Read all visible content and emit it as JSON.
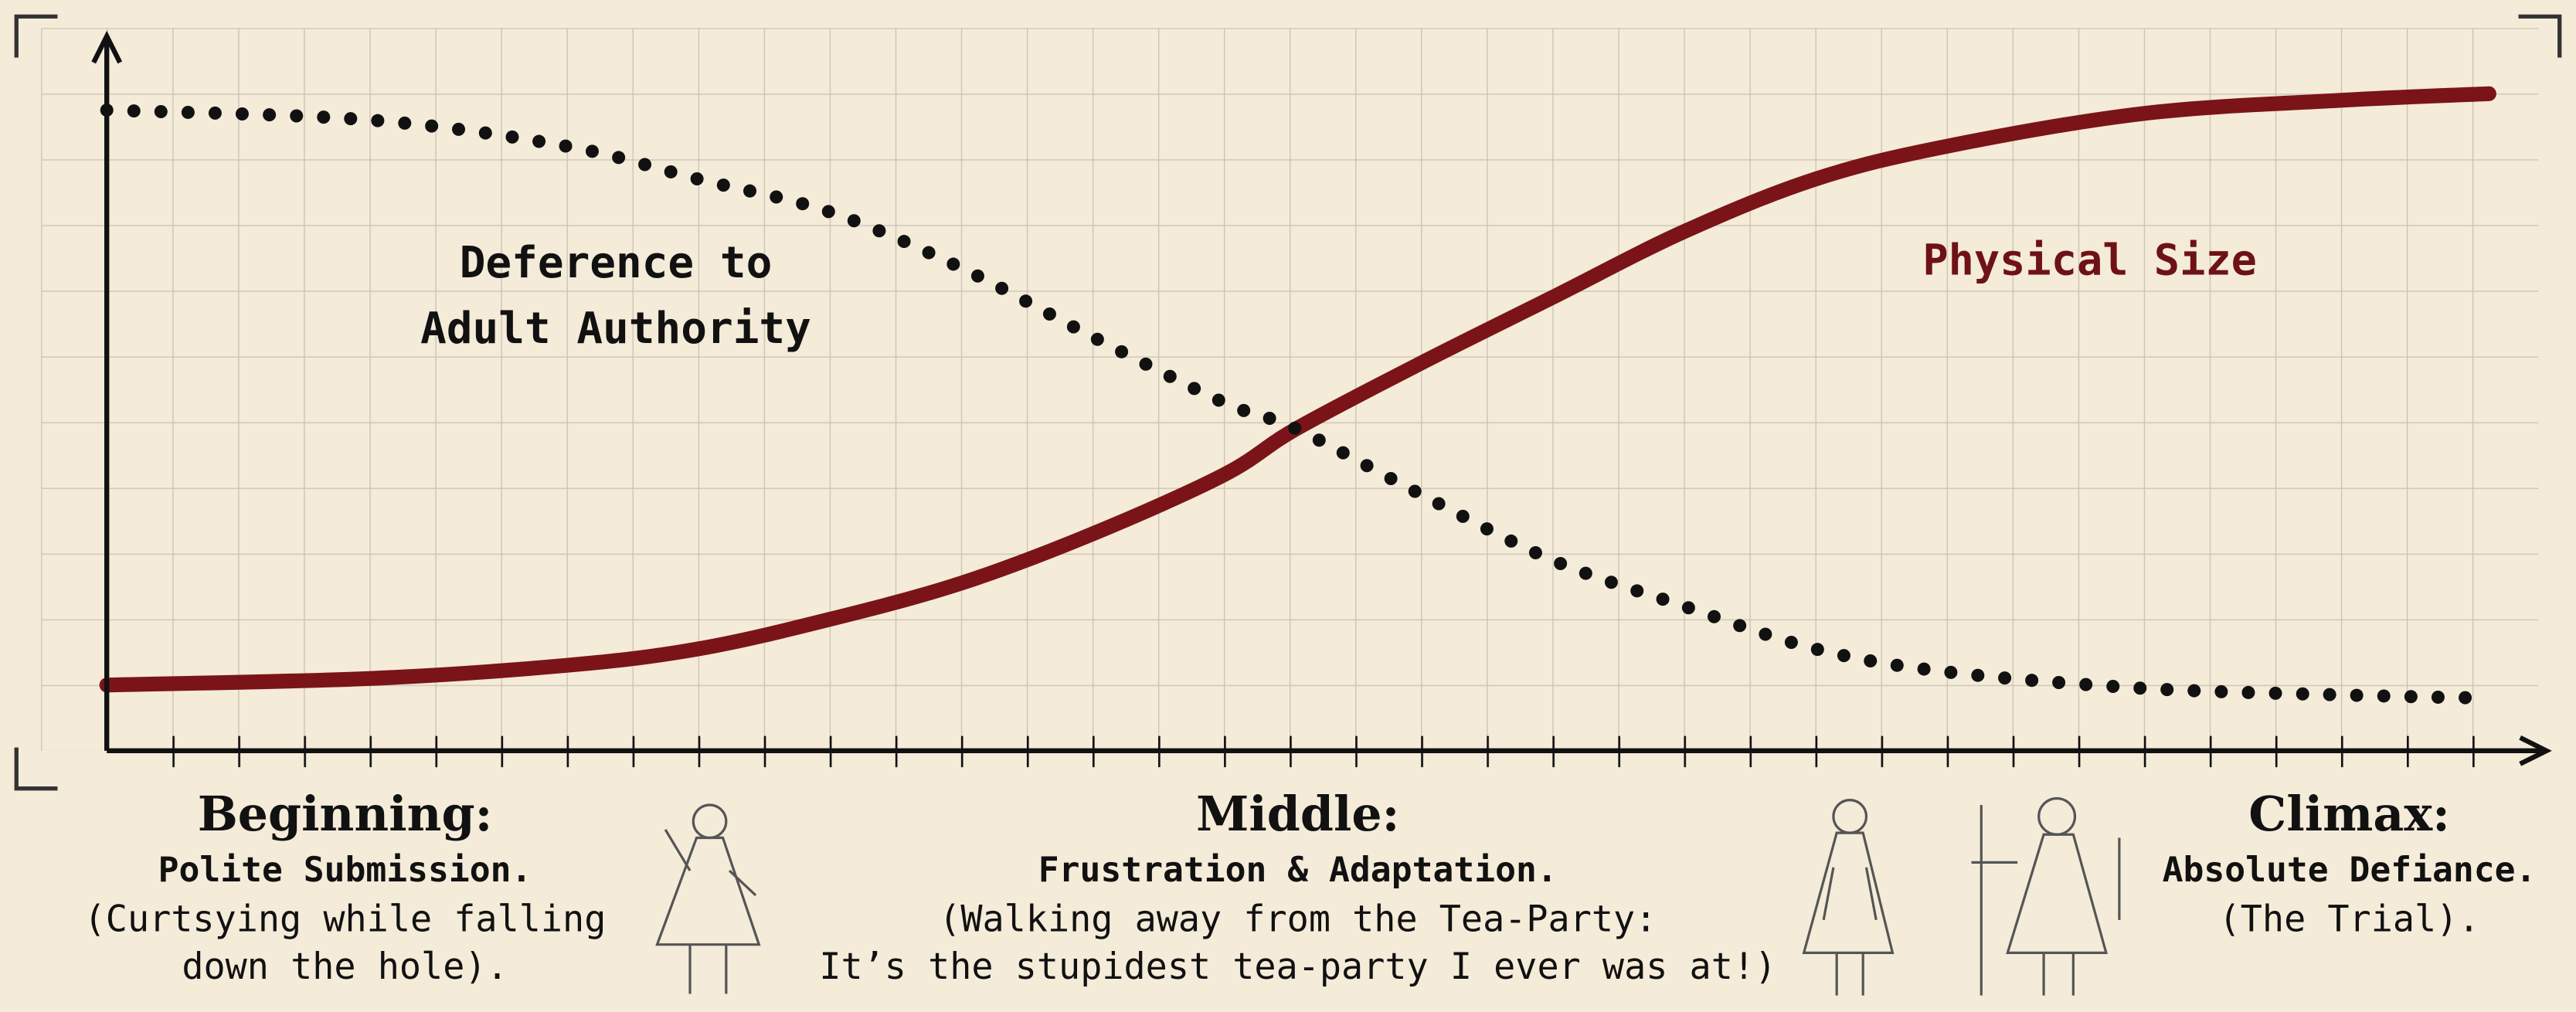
{
  "chart_data": {
    "type": "line",
    "x": [
      0,
      4,
      7,
      9,
      11,
      13,
      15,
      17,
      18.1,
      20,
      22,
      24,
      26,
      28,
      31,
      34,
      36.25
    ],
    "xlim": [
      0,
      37
    ],
    "ylim": [
      0,
      11
    ],
    "grid": true,
    "series": [
      {
        "name": "Physical Size",
        "color": "#7a1418",
        "style": "solid",
        "values": [
          1.0,
          1.1,
          1.3,
          1.55,
          2.0,
          2.55,
          3.3,
          4.2,
          4.9,
          5.9,
          6.9,
          7.9,
          8.7,
          9.2,
          9.7,
          9.9,
          10.0
        ]
      },
      {
        "name": "Deference to Adult Authority",
        "color": "#111111",
        "style": "dotted",
        "values": [
          9.75,
          9.6,
          9.2,
          8.7,
          8.2,
          7.35,
          6.3,
          5.3,
          4.9,
          3.9,
          2.9,
          2.2,
          1.55,
          1.2,
          0.95,
          0.85,
          0.8
        ]
      }
    ]
  },
  "captions": [
    {
      "heading": "Beginning:",
      "subtitle": "Polite Submission.",
      "lines": [
        "(Curtsying while falling",
        "down the hole)."
      ]
    },
    {
      "heading": "Middle:",
      "subtitle": "Frustration & Adaptation.",
      "lines": [
        "(Walking away from the Tea-Party:",
        "It’s the stupidest tea-party I ever was at!)"
      ]
    },
    {
      "heading": "Climax:",
      "subtitle": "Absolute Defiance.",
      "lines": [
        "(The Trial)."
      ]
    }
  ]
}
